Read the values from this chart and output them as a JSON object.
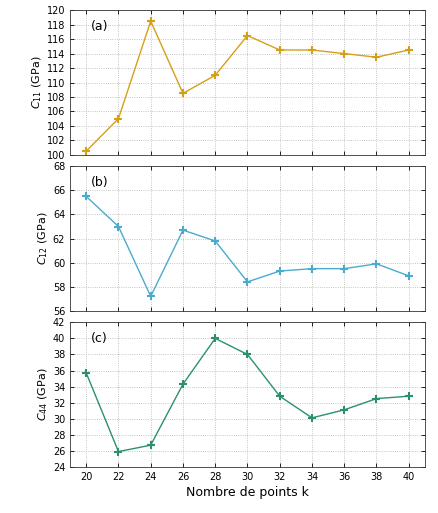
{
  "x": [
    20,
    22,
    24,
    26,
    28,
    30,
    32,
    34,
    36,
    38,
    40
  ],
  "C11": [
    100.5,
    105.0,
    118.5,
    108.5,
    111.0,
    116.5,
    114.5,
    114.5,
    114.0,
    113.5,
    114.5
  ],
  "C12": [
    65.5,
    63.0,
    57.2,
    62.7,
    61.8,
    58.4,
    59.3,
    59.5,
    59.5,
    59.9,
    58.9
  ],
  "C44": [
    35.7,
    25.9,
    26.7,
    34.3,
    40.0,
    38.0,
    32.8,
    30.1,
    31.1,
    32.5,
    32.8
  ],
  "color_C11": "#D4A017",
  "color_C12": "#4AABCE",
  "color_C44": "#2A9070",
  "xlabel": "Nombre de points k",
  "ylabel_C11": "$C_{11}$ (GPa)",
  "ylabel_C12": "$C_{12}$ (GPa)",
  "ylabel_C44": "$C_{44}$ (GPa)",
  "label_a": "(a)",
  "label_b": "(b)",
  "label_c": "(c)",
  "ylim_C11": [
    100,
    120
  ],
  "ylim_C12": [
    56,
    68
  ],
  "ylim_C44": [
    24,
    42
  ],
  "yticks_C11": [
    100,
    102,
    104,
    106,
    108,
    110,
    112,
    114,
    116,
    118,
    120
  ],
  "yticks_C12": [
    56,
    58,
    60,
    62,
    64,
    66,
    68
  ],
  "yticks_C44": [
    24,
    26,
    28,
    30,
    32,
    34,
    36,
    38,
    40,
    42
  ],
  "marker": "+",
  "markersize": 6,
  "linewidth": 1.0,
  "markeredgewidth": 1.5,
  "background_color": "#ffffff",
  "grid_color": "#aaaaaa",
  "tick_labelsize": 7,
  "ylabel_fontsize": 8,
  "xlabel_fontsize": 9,
  "label_fontsize": 9
}
